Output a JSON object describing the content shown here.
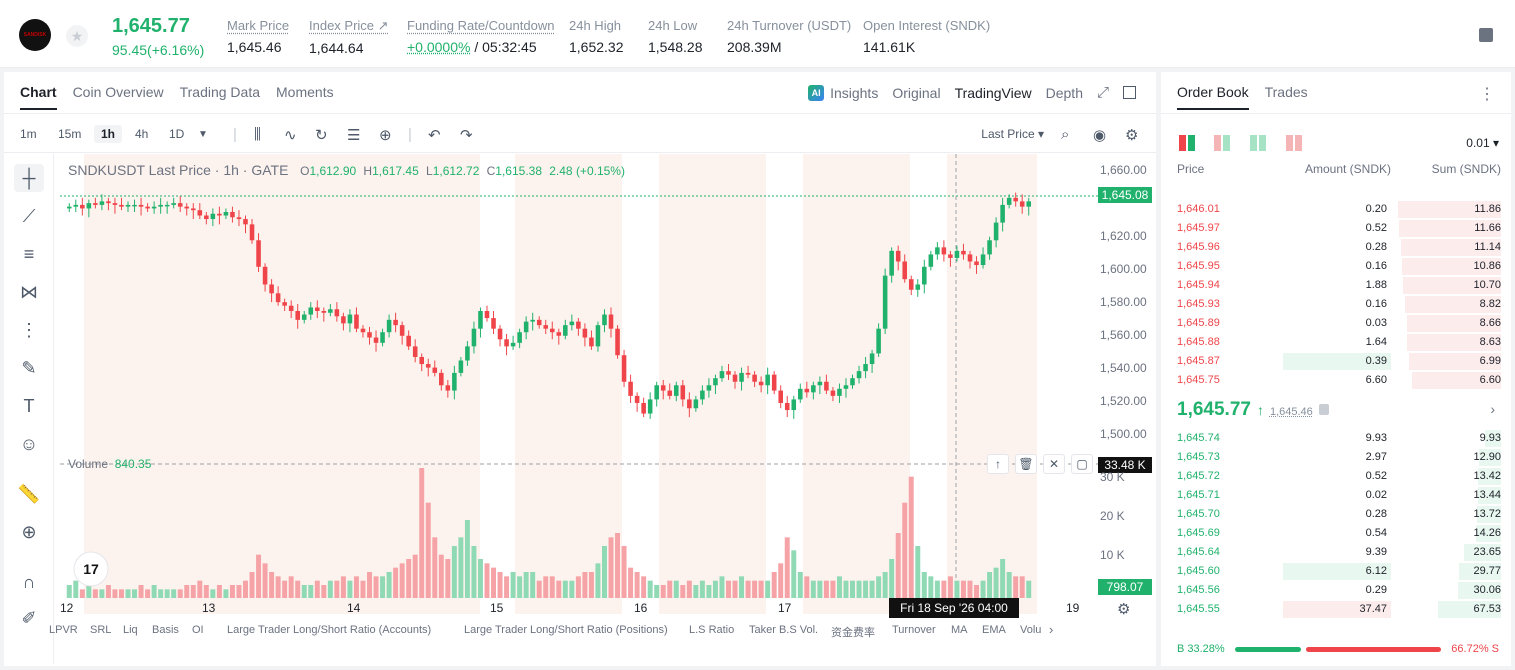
{
  "header": {
    "last_price": "1,645.77",
    "change": "95.45(+6.16%)",
    "stats": [
      {
        "label": "Mark Price",
        "value": "1,645.46"
      },
      {
        "label": "Index Price ↗",
        "value": "1,644.64"
      },
      {
        "label": "Funding Rate/Countdown",
        "value_green": "+0.0000%",
        "value": "/ 05:32:45"
      },
      {
        "label": "24h High",
        "value": "1,652.32"
      },
      {
        "label": "24h Low",
        "value": "1,548.28"
      },
      {
        "label": "24h Turnover (USDT)",
        "value": "208.39M"
      },
      {
        "label": "Open Interest (SNDK)",
        "value": "141.61K"
      }
    ]
  },
  "chart_tabs": {
    "left": [
      "Chart",
      "Coin Overview",
      "Trading Data",
      "Moments"
    ],
    "right": [
      "Insights",
      "Original",
      "TradingView",
      "Depth"
    ]
  },
  "toolbar": {
    "intervals": [
      "1m",
      "15m",
      "1h",
      "4h",
      "1D"
    ],
    "selected_interval": "1h",
    "price_type": "Last Price ▾"
  },
  "chart_data": {
    "type": "candlestick",
    "title": "SNDKUSDT Last Price · 1h · GATE",
    "ohlc_legend": {
      "o": "1,612.90",
      "h": "1,617.45",
      "l": "1,612.72",
      "c": "1,615.38",
      "chg": "2.48 (+0.15%)"
    },
    "y_ticks": [
      "1,660.00",
      "1,645.08",
      "1,620.00",
      "1,600.00",
      "1,580.00",
      "1,560.00",
      "1,540.00",
      "1,520.00",
      "1,500.00"
    ],
    "ylim": [
      1498,
      1662
    ],
    "volume_ticks": [
      "30 K",
      "20 K",
      "10 K"
    ],
    "volume_ylim": [
      0,
      33480
    ],
    "x_ticks": [
      "12",
      "13",
      "14",
      "15",
      "16",
      "17",
      "19"
    ],
    "volume_legend": {
      "label": "Volume",
      "value": "840.35"
    },
    "crosshair_volume": "33.48 K",
    "current_price_label": "1,645.08",
    "current_volume_label": "798.07",
    "crosshair_time": "Fri 18 Sep '26   04:00",
    "close_series": [
      1639,
      1640,
      1638,
      1641,
      1640,
      1642,
      1641,
      1640,
      1639,
      1640,
      1640,
      1639,
      1638,
      1639,
      1640,
      1640,
      1641,
      1639,
      1638,
      1637,
      1634,
      1632,
      1635,
      1634,
      1636,
      1633,
      1632,
      1629,
      1620,
      1605,
      1595,
      1590,
      1585,
      1583,
      1580,
      1575,
      1578,
      1582,
      1580,
      1579,
      1581,
      1577,
      1573,
      1578,
      1570,
      1568,
      1565,
      1562,
      1568,
      1575,
      1572,
      1566,
      1560,
      1554,
      1550,
      1548,
      1545,
      1538,
      1535,
      1545,
      1552,
      1560,
      1570,
      1580,
      1576,
      1570,
      1564,
      1560,
      1562,
      1568,
      1574,
      1575,
      1572,
      1570,
      1568,
      1566,
      1572,
      1574,
      1570,
      1565,
      1560,
      1572,
      1578,
      1570,
      1555,
      1540,
      1532,
      1528,
      1522,
      1530,
      1538,
      1535,
      1532,
      1538,
      1530,
      1525,
      1530,
      1535,
      1538,
      1542,
      1546,
      1544,
      1540,
      1545,
      1544,
      1540,
      1538,
      1544,
      1535,
      1528,
      1524,
      1530,
      1536,
      1534,
      1538,
      1540,
      1535,
      1532,
      1536,
      1538,
      1542,
      1546,
      1550,
      1556,
      1570,
      1600,
      1614,
      1608,
      1598,
      1592,
      1595,
      1605,
      1612,
      1616,
      1612,
      1610,
      1614,
      1612,
      1608,
      1606,
      1612,
      1620,
      1630,
      1640,
      1644,
      1642,
      1639,
      1642
    ],
    "volume_series": [
      3,
      4,
      2,
      3,
      2,
      2,
      3,
      2,
      2,
      2,
      2,
      3,
      2,
      3,
      2,
      2,
      2,
      2,
      3,
      3,
      4,
      3,
      2,
      3,
      2,
      3,
      3,
      4,
      6,
      10,
      8,
      6,
      5,
      4,
      5,
      4,
      3,
      3,
      4,
      3,
      4,
      4,
      5,
      4,
      5,
      4,
      6,
      5,
      5,
      6,
      7,
      8,
      9,
      10,
      30,
      22,
      14,
      10,
      9,
      12,
      14,
      18,
      12,
      9,
      8,
      7,
      6,
      5,
      6,
      5,
      6,
      6,
      4,
      5,
      5,
      4,
      4,
      4,
      5,
      6,
      6,
      8,
      12,
      14,
      15,
      12,
      7,
      6,
      5,
      4,
      3,
      3,
      4,
      4,
      3,
      4,
      3,
      4,
      3,
      4,
      5,
      4,
      4,
      5,
      4,
      4,
      4,
      4,
      6,
      8,
      14,
      11,
      6,
      5,
      4,
      4,
      4,
      4,
      5,
      4,
      4,
      4,
      4,
      4,
      5,
      6,
      9,
      15,
      22,
      28,
      12,
      6,
      5,
      4,
      4,
      5,
      4,
      4,
      4,
      3,
      4,
      6,
      7,
      9,
      6,
      5,
      5,
      4
    ]
  },
  "bottom_indicators": [
    "LPVR",
    "SRL",
    "Liq",
    "Basis",
    "OI",
    "Large Trader Long/Short Ratio (Accounts)",
    "Large Trader Long/Short Ratio (Positions)",
    "L.S Ratio",
    "Taker B.S Vol.",
    "资金费率",
    "Turnover",
    "MA",
    "EMA",
    "Volu"
  ],
  "orderbook": {
    "tabs": [
      "Order Book",
      "Trades"
    ],
    "tick_size": "0.01 ▾",
    "headers": {
      "price": "Price",
      "amount": "Amount (SNDK)",
      "sum": "Sum (SNDK)"
    },
    "asks": [
      {
        "p": "1,646.01",
        "a": "0.20",
        "s": "11.86",
        "sf": 0.98,
        "af": 0
      },
      {
        "p": "1,645.97",
        "a": "0.52",
        "s": "11.66",
        "sf": 0.97,
        "af": 0
      },
      {
        "p": "1,645.96",
        "a": "0.28",
        "s": "11.14",
        "sf": 0.95,
        "af": 0
      },
      {
        "p": "1,645.95",
        "a": "0.16",
        "s": "10.86",
        "sf": 0.94,
        "af": 0
      },
      {
        "p": "1,645.94",
        "a": "1.88",
        "s": "10.70",
        "sf": 0.93,
        "af": 0
      },
      {
        "p": "1,645.93",
        "a": "0.16",
        "s": "8.82",
        "sf": 0.91,
        "af": 0
      },
      {
        "p": "1,645.89",
        "a": "0.03",
        "s": "8.66",
        "sf": 0.9,
        "af": 0
      },
      {
        "p": "1,645.88",
        "a": "1.64",
        "s": "8.63",
        "sf": 0.9,
        "af": 0
      },
      {
        "p": "1,645.87",
        "a": "0.39",
        "s": "6.99",
        "sf": 0.88,
        "af": 0.54
      },
      {
        "p": "1,645.75",
        "a": "6.60",
        "s": "6.60",
        "sf": 0.85,
        "af": 0
      }
    ],
    "mid_price": "1,645.77",
    "mid_index": "1,645.46",
    "bids": [
      {
        "p": "1,645.74",
        "a": "9.93",
        "s": "9.93",
        "sf": 0.15,
        "af": 0
      },
      {
        "p": "1,645.73",
        "a": "2.97",
        "s": "12.90",
        "sf": 0.21,
        "af": 0
      },
      {
        "p": "1,645.72",
        "a": "0.52",
        "s": "13.42",
        "sf": 0.22,
        "af": 0
      },
      {
        "p": "1,645.71",
        "a": "0.02",
        "s": "13.44",
        "sf": 0.22,
        "af": 0
      },
      {
        "p": "1,645.70",
        "a": "0.28",
        "s": "13.72",
        "sf": 0.23,
        "af": 0
      },
      {
        "p": "1,645.69",
        "a": "0.54",
        "s": "14.26",
        "sf": 0.24,
        "af": 0
      },
      {
        "p": "1,645.64",
        "a": "9.39",
        "s": "23.65",
        "sf": 0.35,
        "af": 0
      },
      {
        "p": "1,645.60",
        "a": "6.12",
        "s": "29.77",
        "sf": 0.4,
        "af": 0.54
      },
      {
        "p": "1,645.56",
        "a": "0.29",
        "s": "30.06",
        "sf": 0.41,
        "af": 0
      },
      {
        "p": "1,645.55",
        "a": "37.47",
        "s": "67.53",
        "sf": 0.6,
        "af": 0.54
      }
    ],
    "buy_ratio": "B 33.28%",
    "sell_ratio": "66.72% S",
    "buy_fraction": 0.3328
  },
  "colors": {
    "up": "#20b26c",
    "down": "#ef454a"
  }
}
